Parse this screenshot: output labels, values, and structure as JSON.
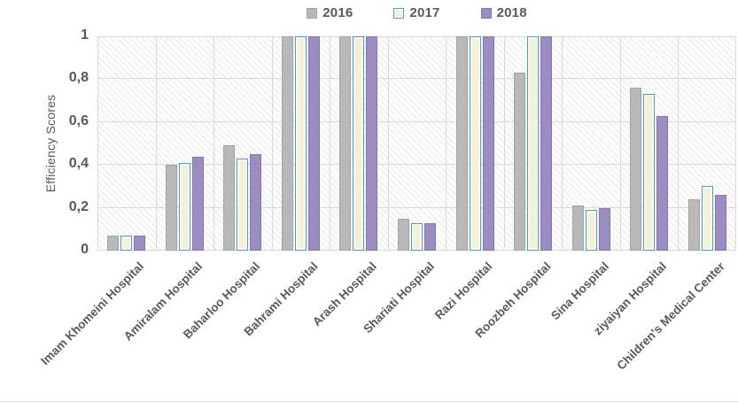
{
  "chart_data": {
    "type": "bar",
    "title": "",
    "xlabel": "",
    "ylabel": "Efficiency Scores",
    "ylim": [
      0,
      1
    ],
    "grid": true,
    "legend_position": "top-center",
    "decimal_separator": ",",
    "yticks": [
      {
        "value": 0,
        "label": "0"
      },
      {
        "value": 0.2,
        "label": "0,2"
      },
      {
        "value": 0.4,
        "label": "0,4"
      },
      {
        "value": 0.6,
        "label": "0,6"
      },
      {
        "value": 0.8,
        "label": "0,8"
      },
      {
        "value": 1,
        "label": "1"
      }
    ],
    "categories": [
      "Imam Khomeini Hospital",
      "Amiralam Hospital",
      "Baharloo Hospital",
      "Bahrami Hospital",
      "Arash Hospital",
      "Shariati Hospital",
      "Razi Hospital",
      "Roozbeh Hospital",
      "Sina Hospital",
      "ziyaiyan Hospital",
      "Children's Medical Center"
    ],
    "series": [
      {
        "name": "2016",
        "fill": "#b9b9b9",
        "border": "#a3a3a3",
        "values": [
          0.07,
          0.4,
          0.49,
          1.0,
          1.0,
          0.15,
          1.0,
          0.83,
          0.21,
          0.76,
          0.24
        ]
      },
      {
        "name": "2017",
        "fill": "#f5f1d6",
        "border": "#41a0c4",
        "values": [
          0.07,
          0.41,
          0.43,
          1.0,
          1.0,
          0.13,
          1.0,
          1.0,
          0.19,
          0.73,
          0.3
        ]
      },
      {
        "name": "2018",
        "fill": "#9b8cc2",
        "border": "#8677b0",
        "values": [
          0.07,
          0.44,
          0.45,
          1.0,
          1.0,
          0.13,
          1.0,
          1.0,
          0.2,
          0.63,
          0.26
        ]
      }
    ]
  },
  "colors": {
    "axis_text": "#595959",
    "gridline": "#d9d9d9",
    "plot_hatch": "#e9e9e9"
  }
}
